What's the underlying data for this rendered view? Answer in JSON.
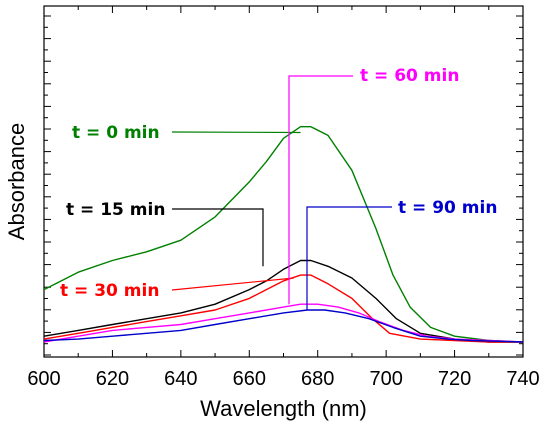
{
  "chart_data": {
    "type": "line",
    "title": "",
    "xlabel": "Wavelength (nm)",
    "ylabel": "Absorbance",
    "xlim": [
      600,
      740
    ],
    "ylim": [
      0,
      1
    ],
    "x_ticks": [
      600,
      620,
      640,
      660,
      680,
      700,
      720,
      740
    ],
    "y_ticks_labeled": false,
    "grid": false,
    "legend": "none",
    "series": [
      {
        "name": "t = 0 min",
        "color": "#008000",
        "points": [
          [
            600,
            0.18
          ],
          [
            610,
            0.24
          ],
          [
            620,
            0.28
          ],
          [
            630,
            0.31
          ],
          [
            640,
            0.35
          ],
          [
            650,
            0.43
          ],
          [
            660,
            0.55
          ],
          [
            665,
            0.62
          ],
          [
            670,
            0.7
          ],
          [
            675,
            0.74
          ],
          [
            678,
            0.74
          ],
          [
            683,
            0.71
          ],
          [
            690,
            0.59
          ],
          [
            697,
            0.39
          ],
          [
            702,
            0.23
          ],
          [
            707,
            0.12
          ],
          [
            713,
            0.05
          ],
          [
            720,
            0.02
          ],
          [
            730,
            0.005
          ],
          [
            740,
            0.0
          ]
        ]
      },
      {
        "name": "t = 15 min",
        "color": "#000000",
        "points": [
          [
            600,
            0.02
          ],
          [
            610,
            0.04
          ],
          [
            620,
            0.06
          ],
          [
            630,
            0.08
          ],
          [
            640,
            0.1
          ],
          [
            650,
            0.13
          ],
          [
            660,
            0.18
          ],
          [
            665,
            0.21
          ],
          [
            670,
            0.25
          ],
          [
            675,
            0.28
          ],
          [
            678,
            0.28
          ],
          [
            683,
            0.26
          ],
          [
            690,
            0.22
          ],
          [
            697,
            0.15
          ],
          [
            703,
            0.08
          ],
          [
            710,
            0.03
          ],
          [
            720,
            0.01
          ],
          [
            730,
            0.0
          ],
          [
            740,
            0.0
          ]
        ]
      },
      {
        "name": "t = 30 min",
        "color": "#ff0000",
        "points": [
          [
            600,
            0.01
          ],
          [
            610,
            0.03
          ],
          [
            620,
            0.05
          ],
          [
            630,
            0.07
          ],
          [
            640,
            0.09
          ],
          [
            650,
            0.11
          ],
          [
            660,
            0.15
          ],
          [
            665,
            0.18
          ],
          [
            670,
            0.21
          ],
          [
            675,
            0.23
          ],
          [
            678,
            0.23
          ],
          [
            683,
            0.2
          ],
          [
            690,
            0.15
          ],
          [
            696,
            0.08
          ],
          [
            701,
            0.03
          ],
          [
            710,
            0.01
          ],
          [
            720,
            0.005
          ],
          [
            730,
            0.0
          ],
          [
            740,
            0.0
          ]
        ]
      },
      {
        "name": "t = 60 min",
        "color": "#ff00ff",
        "points": [
          [
            600,
            0.0
          ],
          [
            610,
            0.02
          ],
          [
            620,
            0.04
          ],
          [
            630,
            0.05
          ],
          [
            640,
            0.06
          ],
          [
            650,
            0.08
          ],
          [
            660,
            0.1
          ],
          [
            670,
            0.12
          ],
          [
            675,
            0.13
          ],
          [
            680,
            0.13
          ],
          [
            686,
            0.12
          ],
          [
            692,
            0.1
          ],
          [
            698,
            0.07
          ],
          [
            705,
            0.04
          ],
          [
            712,
            0.02
          ],
          [
            720,
            0.01
          ],
          [
            730,
            0.005
          ],
          [
            740,
            0.0
          ]
        ]
      },
      {
        "name": "t = 90 min",
        "color": "#0000cc",
        "points": [
          [
            600,
            0.005
          ],
          [
            610,
            0.01
          ],
          [
            620,
            0.02
          ],
          [
            630,
            0.03
          ],
          [
            640,
            0.04
          ],
          [
            650,
            0.06
          ],
          [
            660,
            0.08
          ],
          [
            670,
            0.1
          ],
          [
            677,
            0.11
          ],
          [
            682,
            0.11
          ],
          [
            688,
            0.1
          ],
          [
            695,
            0.08
          ],
          [
            702,
            0.05
          ],
          [
            710,
            0.02
          ],
          [
            718,
            0.01
          ],
          [
            725,
            0.005
          ],
          [
            740,
            0.0
          ]
        ]
      }
    ],
    "annotations": [
      {
        "text": "t = 0 min",
        "color": "#008000",
        "points_to": [
          675,
          0.72
        ]
      },
      {
        "text": "t = 15 min",
        "color": "#000000",
        "points_to": [
          663,
          0.26
        ]
      },
      {
        "text": "t = 30 min",
        "color": "#ff0000",
        "points_to": [
          673,
          0.22
        ]
      },
      {
        "text": "t = 60 min",
        "color": "#ff00ff",
        "points_to": [
          671,
          0.13
        ]
      },
      {
        "text": "t = 90 min",
        "color": "#0000cc",
        "points_to": [
          677,
          0.11
        ]
      }
    ]
  }
}
